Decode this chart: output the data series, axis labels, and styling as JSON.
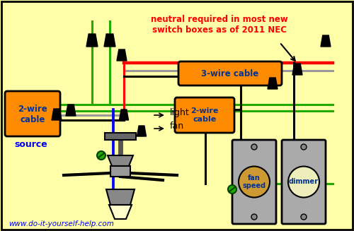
{
  "bg_color": "#FFFFAA",
  "website": "www.do-it-yourself-help.com",
  "figsize": [
    5.0,
    3.27
  ],
  "dpi": 100,
  "annotation_text": "neutral required in most new\nswitch boxes as of 2011 NEC",
  "label_3wire": "3-wire cable",
  "label_2wire_left": "2-wire\ncable",
  "label_source": "source",
  "label_2wire_mid": "2-wire\ncable",
  "label_light": "light",
  "label_fan": "fan",
  "label_fan_speed": "fan\nspeed",
  "label_dimmer": "dimmer",
  "orange_color": "#FF8C00",
  "red_color": "#FF0000",
  "green_color": "#22AA00",
  "blue_color": "#0000FF",
  "gray_color": "#999999",
  "black_color": "#000000",
  "white_color": "#FFFFFF",
  "switch_gray": "#AAAAAA",
  "dark_gray": "#555555"
}
